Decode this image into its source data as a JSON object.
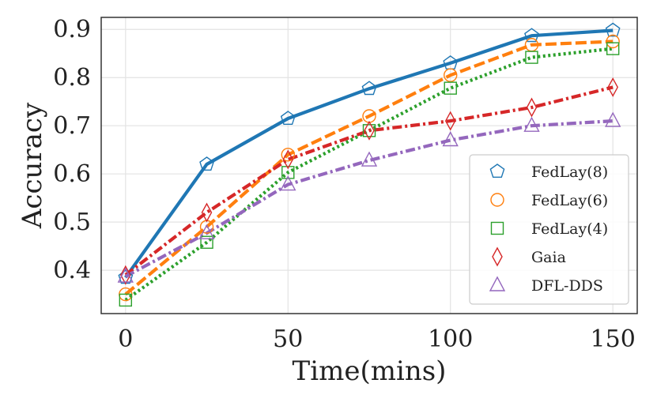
{
  "chart_data": {
    "type": "line",
    "title": "",
    "xlabel": "Time(mins)",
    "ylabel": "Accuracy",
    "x": [
      0,
      25,
      50,
      75,
      100,
      125,
      150
    ],
    "xlim": [
      -7.5,
      157.5
    ],
    "ylim": [
      0.31,
      0.925
    ],
    "xticks": [
      0,
      50,
      100,
      150
    ],
    "yticks": [
      0.4,
      0.5,
      0.6,
      0.7,
      0.8,
      0.9
    ],
    "xtick_labels": [
      "0",
      "50",
      "100",
      "150"
    ],
    "ytick_labels": [
      "0.4",
      "0.5",
      "0.6",
      "0.7",
      "0.8",
      "0.9"
    ],
    "grid": true,
    "legend_position": "lower-right",
    "series": [
      {
        "name": "FedLay(8)",
        "values": [
          0.385,
          0.62,
          0.715,
          0.777,
          0.83,
          0.887,
          0.898
        ],
        "color": "#1f77b4",
        "dash": "solid",
        "marker": "pentagon"
      },
      {
        "name": "FedLay(6)",
        "values": [
          0.35,
          0.49,
          0.64,
          0.72,
          0.805,
          0.868,
          0.875
        ],
        "color": "#ff7f0e",
        "dash": "dashed",
        "marker": "circle"
      },
      {
        "name": "FedLay(4)",
        "values": [
          0.338,
          0.458,
          0.603,
          0.69,
          0.778,
          0.842,
          0.86
        ],
        "color": "#2ca02c",
        "dash": "dotted",
        "marker": "square"
      },
      {
        "name": "Gaia",
        "values": [
          0.39,
          0.52,
          0.63,
          0.69,
          0.71,
          0.738,
          0.78
        ],
        "color": "#d62728",
        "dash": "dashdot",
        "marker": "diamond"
      },
      {
        "name": "DFL-DDS",
        "values": [
          0.387,
          0.477,
          0.578,
          0.628,
          0.67,
          0.7,
          0.71
        ],
        "color": "#9467bd",
        "dash": "dashdot",
        "marker": "triangle"
      }
    ]
  }
}
